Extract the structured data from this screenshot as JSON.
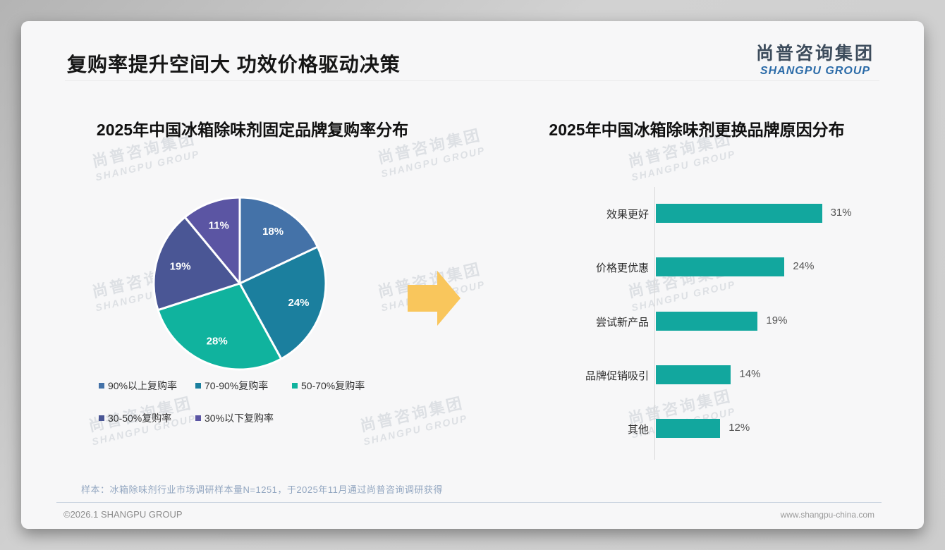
{
  "page": {
    "title": "复购率提升空间大 功效价格驱动决策",
    "logo": {
      "cn": "尚普咨询集团",
      "en": "SHANGPU GROUP"
    },
    "watermark": {
      "cn": "尚普咨询集团",
      "en": "SHANGPU GROUP"
    },
    "note": "样本：冰箱除味剂行业市场调研样本量N=1251，于2025年11月通过尚普咨询调研获得",
    "footer_left": "©2026.1 SHANGPU GROUP",
    "footer_right": "www.shangpu-china.com"
  },
  "arrow_color": "#f9c65c",
  "chart_data": [
    {
      "type": "pie",
      "title": "2025年中国冰箱除味剂固定品牌复购率分布",
      "labels": [
        "90%以上复购率",
        "70-90%复购率",
        "50-70%复购率",
        "30-50%复购率",
        "30%以下复购率"
      ],
      "values": [
        18,
        24,
        28,
        19,
        11
      ],
      "unit": "%",
      "colors": [
        "#4472a8",
        "#1b7f9e",
        "#10b39e",
        "#4a5695",
        "#5b55a3"
      ],
      "start_angle": 0,
      "direction": "clockwise",
      "legend_position": "bottom",
      "slice_border_color": "#ffffff"
    },
    {
      "type": "bar",
      "title": "2025年中国冰箱除味剂更换品牌原因分布",
      "orientation": "horizontal",
      "categories": [
        "效果更好",
        "价格更优惠",
        "尝试新产品",
        "品牌促销吸引",
        "其他"
      ],
      "values": [
        31,
        24,
        19,
        14,
        12
      ],
      "unit": "%",
      "bar_color": "#12a79e",
      "xlim": [
        0,
        35
      ],
      "grid": false,
      "value_labels": "outside-end"
    }
  ]
}
